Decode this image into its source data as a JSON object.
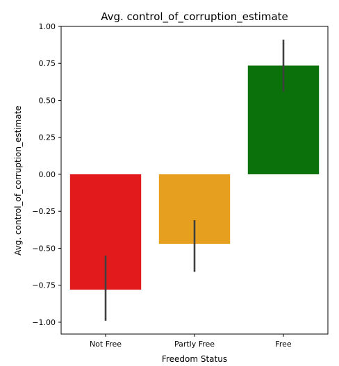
{
  "chart_data": {
    "type": "bar",
    "title": "Avg. control_of_corruption_estimate",
    "xlabel": "Freedom Status",
    "ylabel": "Avg. control_of_corruption_estimate",
    "categories": [
      "Not Free",
      "Partly Free",
      "Free"
    ],
    "values": [
      -0.78,
      -0.47,
      0.735
    ],
    "error_low": [
      -0.99,
      -0.66,
      0.56
    ],
    "error_high": [
      -0.55,
      -0.31,
      0.91
    ],
    "colors": [
      "#e31a1c",
      "#e69f1e",
      "#0b720b"
    ],
    "ylim": [
      -1.08,
      1.0
    ],
    "yticks": [
      1.0,
      0.75,
      0.5,
      0.25,
      0.0,
      -0.25,
      -0.5,
      -0.75,
      -1.0
    ],
    "ytick_labels": [
      "1.00",
      "0.75",
      "0.50",
      "0.25",
      "0.00",
      "−0.25",
      "−0.50",
      "−0.75",
      "−1.00"
    ],
    "grid": false,
    "legend": "none"
  }
}
